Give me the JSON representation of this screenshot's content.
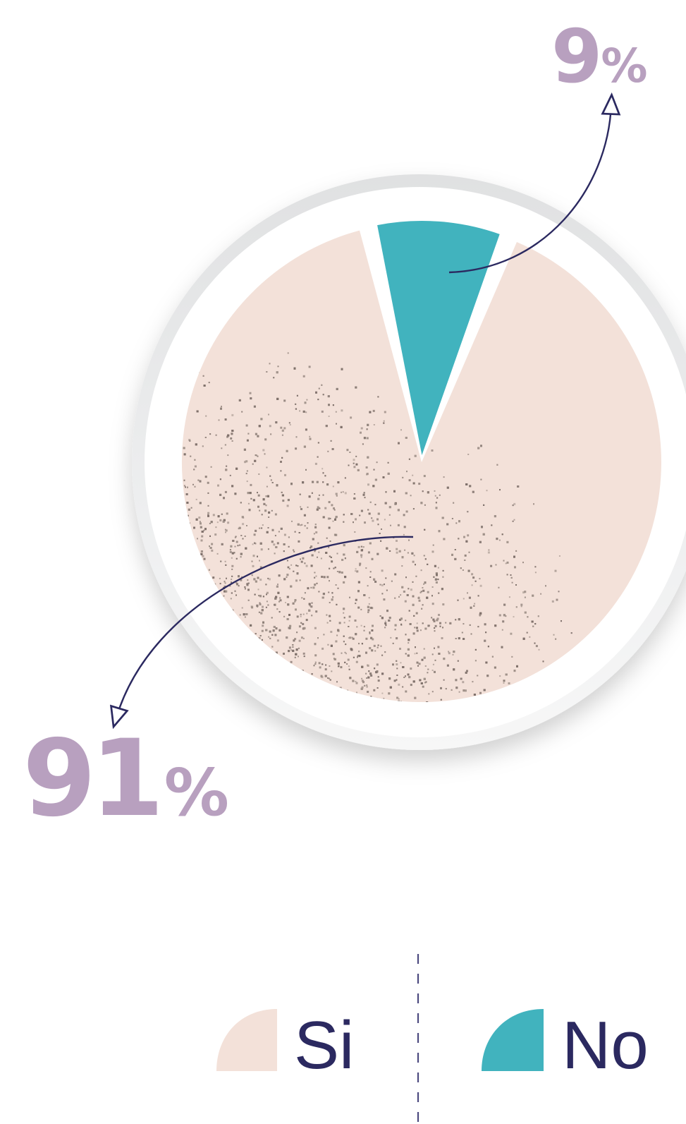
{
  "chart_data": {
    "type": "pie",
    "title": "",
    "slices": [
      {
        "label": "Si",
        "value": 91,
        "display": "91",
        "color": "#f3e1d9"
      },
      {
        "label": "No",
        "value": 9,
        "display": "9",
        "color": "#41b3be"
      }
    ],
    "percent_sign": "%",
    "label_color": "#b8a0bf",
    "legend": {
      "placement": "bottom",
      "items": [
        {
          "label": "Si",
          "color": "#f3e1d9"
        },
        {
          "label": "No",
          "color": "#41b3be"
        }
      ],
      "text_color": "#2b2960",
      "divider_color": "#4d4a80"
    },
    "arrow_color": "#2b2960",
    "texture_color": "#8e8079",
    "ring_color": "#e3e4e5"
  }
}
